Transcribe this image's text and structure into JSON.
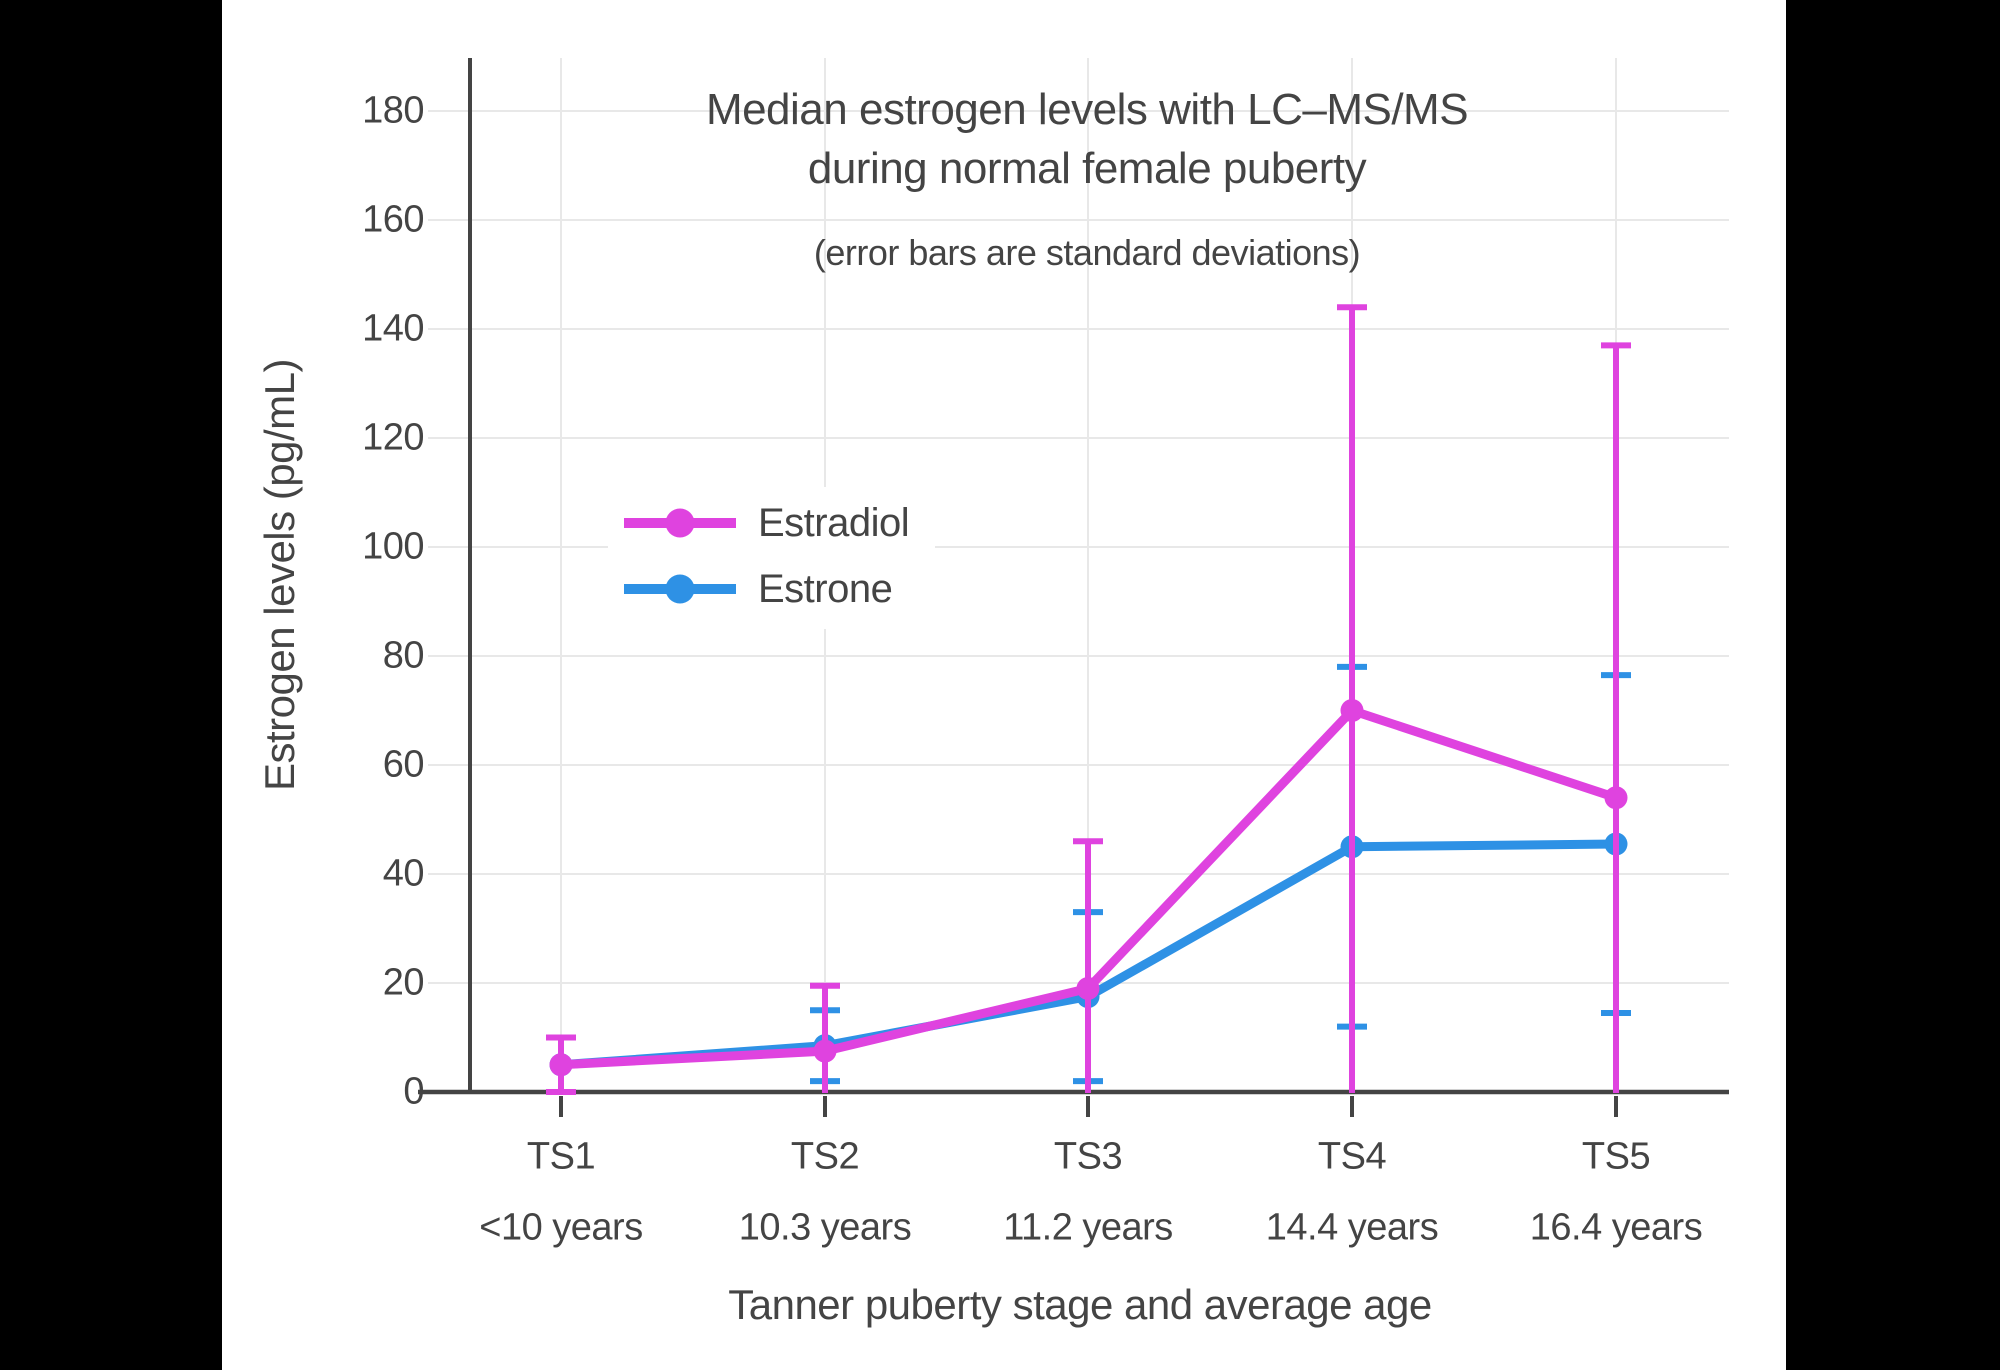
{
  "page": {
    "background": "#000000",
    "canvas_background": "#ffffff"
  },
  "chart_data": {
    "type": "line",
    "title_lines": [
      "Median estrogen levels with LC–MS/MS",
      "during normal female puberty"
    ],
    "subtitle": "(error bars are standard deviations)",
    "xlabel": "Tanner puberty stage and average age",
    "ylabel": "Estrogen levels (pg/mL)",
    "x_categories": [
      "TS1",
      "TS2",
      "TS3",
      "TS4",
      "TS5"
    ],
    "x_sublabels": [
      "<10 years",
      "10.3 years",
      "11.2 years",
      "14.4 years",
      "16.4 years"
    ],
    "y_ticks": [
      0,
      20,
      40,
      60,
      80,
      100,
      120,
      140,
      160,
      180
    ],
    "ylim": [
      0,
      190
    ],
    "grid": true,
    "legend": {
      "position": "inside-upper-left",
      "entries": [
        "Estradiol",
        "Estrone"
      ]
    },
    "series": [
      {
        "name": "Estradiol",
        "color": "#DF43DF",
        "values": [
          5,
          7.5,
          19,
          70,
          54
        ],
        "sd": [
          5,
          12,
          27,
          74,
          83
        ],
        "upper_caps": [
          10,
          19.5,
          46,
          144,
          137
        ],
        "lower_caps": [
          0,
          null,
          null,
          null,
          null
        ]
      },
      {
        "name": "Estrone",
        "color": "#2E91E5",
        "values": [
          5,
          8.5,
          17.5,
          45,
          45.5
        ],
        "sd": [
          0,
          6.5,
          15.5,
          33,
          31
        ],
        "upper_caps": [
          null,
          15,
          33,
          78,
          76.5
        ],
        "lower_caps": [
          null,
          2,
          2,
          12,
          14.5
        ]
      }
    ],
    "colors": {
      "text": "#444444",
      "grid": "#e8e8e8",
      "axis": "#444444"
    }
  }
}
